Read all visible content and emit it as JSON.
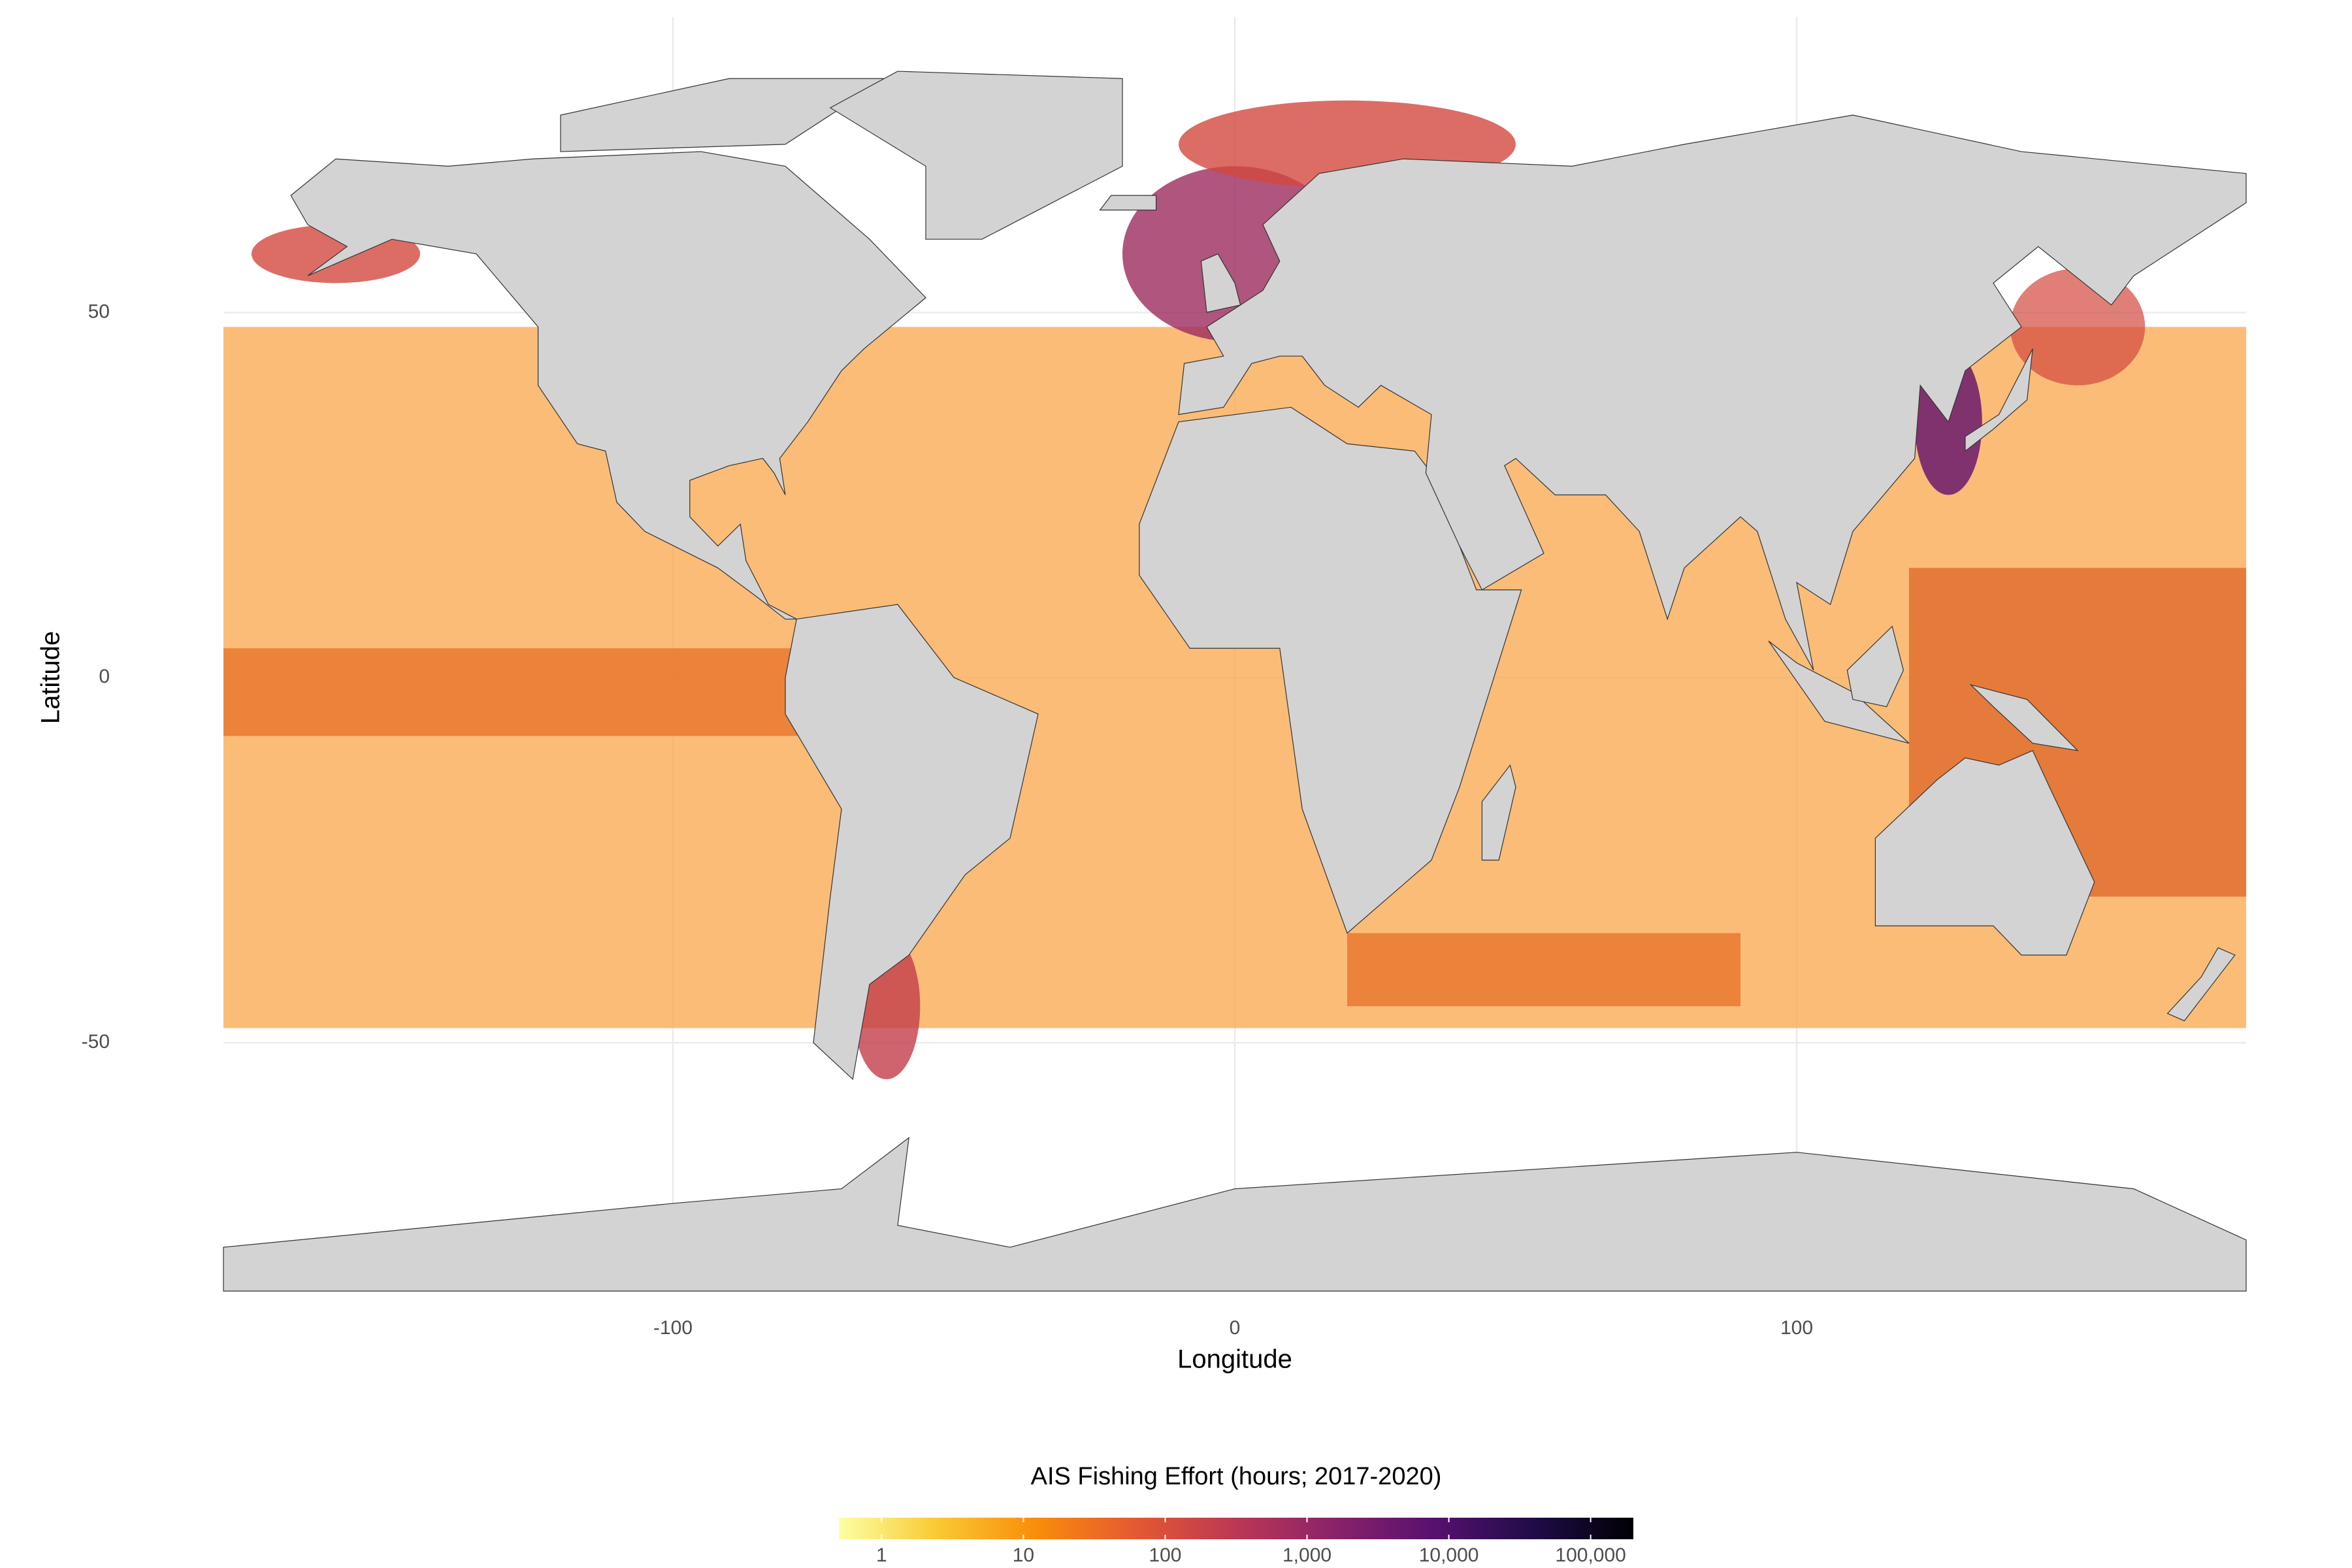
{
  "chart_data": {
    "type": "map",
    "xlabel": "Longitude",
    "ylabel": "Latitude",
    "xlim": [
      -180,
      180
    ],
    "ylim": [
      -84,
      86
    ],
    "xticks": [
      -100,
      0,
      100
    ],
    "yticks": [
      -50,
      0,
      50
    ],
    "grid": true,
    "colorbar": {
      "title": "AIS Fishing Effort (hours; 2017-2020)",
      "scale": "log",
      "lim": [
        0.5,
        200000
      ],
      "ticks": [
        1,
        10,
        100,
        {
          "value": 1000,
          "label": "1,000"
        },
        {
          "value": 10000,
          "label": "10,000"
        },
        {
          "value": 100000,
          "label": "100,000"
        }
      ],
      "colors": [
        "#fcffa4",
        "#f9c932",
        "#f98c0a",
        "#e35932",
        "#bc3754",
        "#89226a",
        "#57106e",
        "#1f0c48",
        "#000004"
      ]
    }
  }
}
